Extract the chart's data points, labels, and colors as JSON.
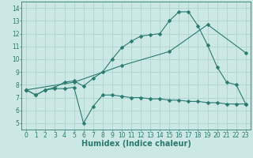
{
  "line1_x": [
    0,
    1,
    2,
    3,
    4,
    5,
    6,
    7,
    8,
    9,
    10,
    11,
    12,
    13,
    14,
    15,
    16,
    17,
    18,
    19,
    20,
    21,
    22,
    23
  ],
  "line1_y": [
    7.6,
    7.2,
    7.6,
    7.7,
    7.7,
    7.8,
    5.0,
    6.3,
    7.2,
    7.2,
    7.1,
    7.0,
    7.0,
    6.9,
    6.9,
    6.8,
    6.8,
    6.7,
    6.7,
    6.6,
    6.6,
    6.5,
    6.5,
    6.5
  ],
  "line2_x": [
    0,
    1,
    2,
    3,
    4,
    5,
    6,
    7,
    8,
    9,
    10,
    11,
    12,
    13,
    14,
    15,
    16,
    17,
    18,
    19,
    20,
    21,
    22,
    23
  ],
  "line2_y": [
    7.6,
    7.2,
    7.6,
    7.8,
    8.2,
    8.3,
    7.9,
    8.5,
    9.0,
    10.0,
    10.9,
    11.4,
    11.8,
    11.9,
    12.0,
    13.0,
    13.7,
    13.7,
    12.6,
    11.1,
    9.4,
    8.2,
    8.0,
    6.5
  ],
  "line3_x": [
    0,
    5,
    10,
    15,
    19,
    23
  ],
  "line3_y": [
    7.6,
    8.2,
    9.5,
    10.6,
    12.7,
    10.5
  ],
  "color": "#2a7a6e",
  "bg_color": "#cce8e5",
  "grid_color": "#aed4d0",
  "xlabel": "Humidex (Indice chaleur)",
  "xlim": [
    -0.5,
    23.5
  ],
  "ylim": [
    4.5,
    14.5
  ],
  "yticks": [
    5,
    6,
    7,
    8,
    9,
    10,
    11,
    12,
    13,
    14
  ],
  "xticks": [
    0,
    1,
    2,
    3,
    4,
    5,
    6,
    7,
    8,
    9,
    10,
    11,
    12,
    13,
    14,
    15,
    16,
    17,
    18,
    19,
    20,
    21,
    22,
    23
  ],
  "tick_fontsize": 5.5,
  "xlabel_fontsize": 7.0,
  "marker_size": 2.5,
  "line_width": 0.8
}
